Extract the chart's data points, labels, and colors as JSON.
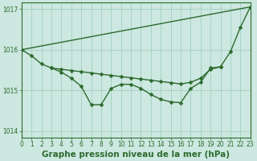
{
  "series": [
    {
      "name": "line_straight",
      "x": [
        0,
        23
      ],
      "y": [
        1016.0,
        1017.05
      ],
      "color": "#2d6a2d",
      "linewidth": 1.0,
      "marker": "D",
      "markersize": 2.5,
      "markevery": [
        0,
        1
      ]
    },
    {
      "name": "line_main",
      "x": [
        0,
        1,
        2,
        3,
        4,
        5,
        6,
        7,
        8,
        9,
        10,
        11,
        12,
        13,
        14,
        15,
        16,
        17,
        18,
        19,
        20,
        21,
        22,
        23
      ],
      "y": [
        1016.0,
        1015.85,
        1015.65,
        1015.55,
        1015.45,
        1015.3,
        1015.1,
        1014.65,
        1014.65,
        1015.05,
        1015.15,
        1015.15,
        1015.05,
        1014.9,
        1014.78,
        1014.72,
        1014.7,
        1015.05,
        1015.2,
        1015.55,
        1015.58,
        1015.95,
        1016.55,
        1017.05
      ],
      "color": "#2d6a2d",
      "linewidth": 1.0,
      "marker": "D",
      "markersize": 2.5,
      "markevery": null
    },
    {
      "name": "line_upper",
      "x": [
        3,
        4,
        5,
        6,
        7,
        8,
        9,
        10,
        11,
        12,
        13,
        14,
        15,
        16,
        17,
        18,
        19,
        20
      ],
      "y": [
        1015.55,
        1015.52,
        1015.49,
        1015.46,
        1015.43,
        1015.4,
        1015.37,
        1015.34,
        1015.31,
        1015.28,
        1015.25,
        1015.22,
        1015.19,
        1015.16,
        1015.2,
        1015.3,
        1015.52,
        1015.58
      ],
      "color": "#2d6a2d",
      "linewidth": 1.0,
      "marker": "D",
      "markersize": 2.5,
      "markevery": null
    }
  ],
  "xlim": [
    0,
    23
  ],
  "ylim": [
    1013.85,
    1017.15
  ],
  "yticks": [
    1014,
    1015,
    1016,
    1017
  ],
  "xticks": [
    0,
    1,
    2,
    3,
    4,
    5,
    6,
    7,
    8,
    9,
    10,
    11,
    12,
    13,
    14,
    15,
    16,
    17,
    18,
    19,
    20,
    21,
    22,
    23
  ],
  "xlabel": "Graphe pression niveau de la mer (hPa)",
  "background_color": "#cce8e0",
  "grid_color": "#99ccbb",
  "text_color": "#2d6a2d",
  "axis_color": "#2d6a2d",
  "tick_fontsize": 5.5,
  "xlabel_fontsize": 7.5
}
